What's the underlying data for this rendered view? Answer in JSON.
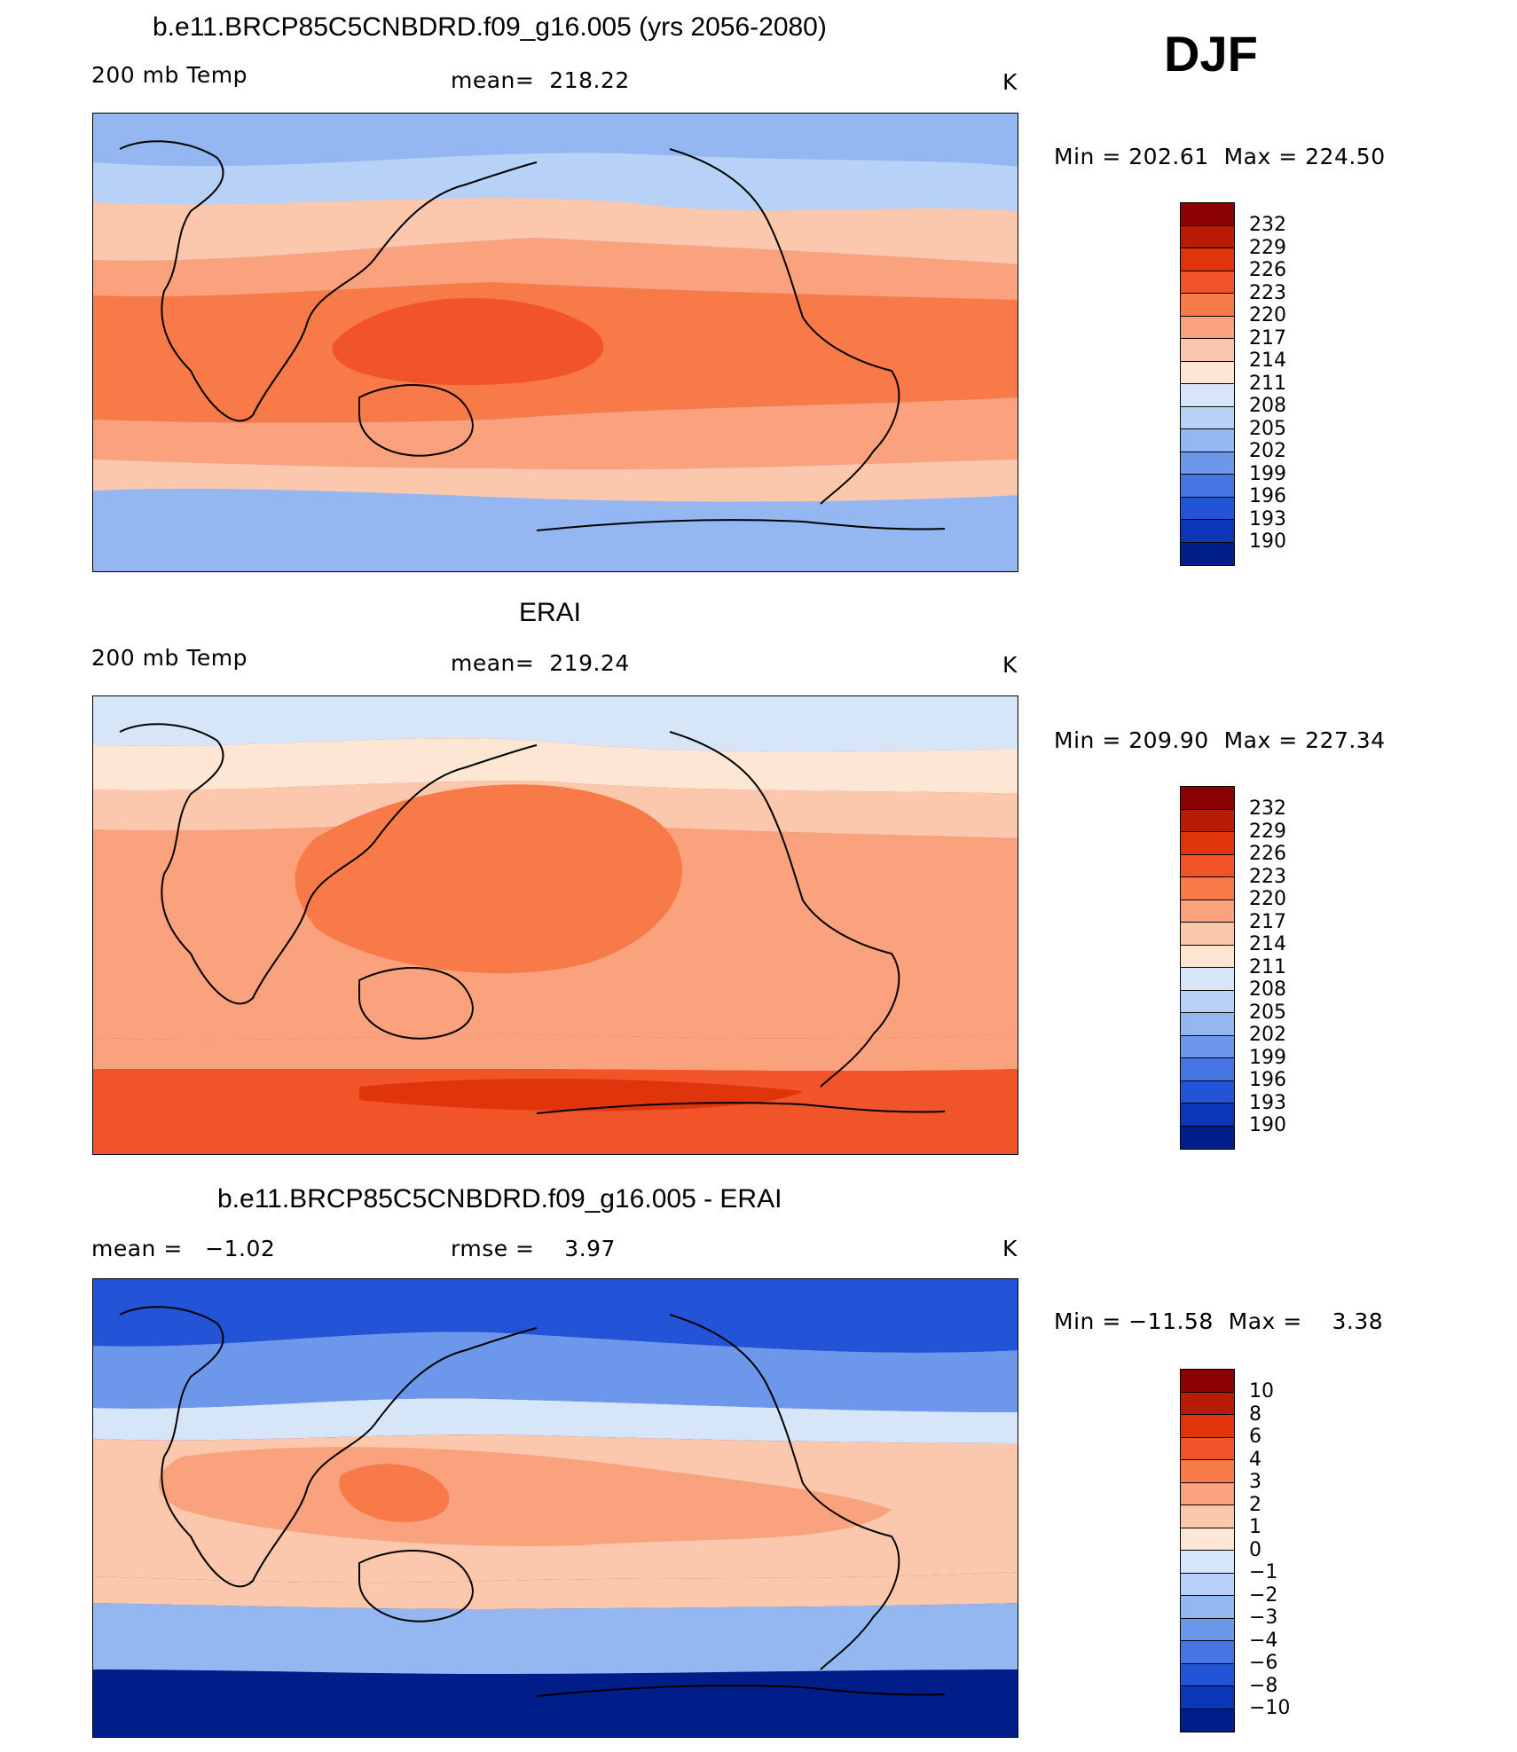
{
  "header": {
    "season": "DJF"
  },
  "panels": [
    {
      "id": "model",
      "title": "b.e11.BRCP85C5CNBDRD.f09_g16.005 (yrs 2056-2080)",
      "left_label": "200 mb Temp",
      "center_label": "mean=",
      "center_value": "218.22",
      "units": "K",
      "min_label": "Min",
      "min_value": "202.61",
      "max_label": "Max",
      "max_value": "224.50",
      "colorbar": {
        "levels": [
          "232",
          "229",
          "226",
          "223",
          "220",
          "217",
          "214",
          "211",
          "208",
          "205",
          "202",
          "199",
          "196",
          "193",
          "190"
        ],
        "colors": [
          "#8b0000",
          "#b81c05",
          "#e0350a",
          "#f2542a",
          "#f77a48",
          "#f9a27d",
          "#fcc8ad",
          "#fde6d4",
          "#d6e6f8",
          "#b8d1f6",
          "#94b7f2",
          "#6d97eb",
          "#4676e3",
          "#2354d7",
          "#0b36b8",
          "#001e8a"
        ]
      },
      "field_colors": {
        "polar_n": "#94b7f2",
        "subpolar_n": "#b8d1f6",
        "midlat_n": "#fcc8ad",
        "subtrop_n": "#f9a27d",
        "tropics": "#f77a48",
        "warm_pool": "#f2542a",
        "subtrop_s": "#f9a27d",
        "midlat_s": "#fcc8ad",
        "polar_s": "#fcc8ad"
      }
    },
    {
      "id": "obs",
      "title": "ERAI",
      "left_label": "200 mb Temp",
      "center_label": "mean=",
      "center_value": "219.24",
      "units": "K",
      "min_label": "Min",
      "min_value": "209.90",
      "max_label": "Max",
      "max_value": "227.34",
      "colorbar": {
        "levels": [
          "232",
          "229",
          "226",
          "223",
          "220",
          "217",
          "214",
          "211",
          "208",
          "205",
          "202",
          "199",
          "196",
          "193",
          "190"
        ],
        "colors": [
          "#8b0000",
          "#b81c05",
          "#e0350a",
          "#f2542a",
          "#f77a48",
          "#f9a27d",
          "#fcc8ad",
          "#fde6d4",
          "#d6e6f8",
          "#b8d1f6",
          "#94b7f2",
          "#6d97eb",
          "#4676e3",
          "#2354d7",
          "#0b36b8",
          "#001e8a"
        ]
      },
      "field_colors": {
        "polar_n": "#d6e6f8",
        "subpolar_n": "#fde6d4",
        "midlat_n": "#fcc8ad",
        "subtrop_n": "#f9a27d",
        "tropics": "#f77a48",
        "warm_pool": "#f77a48",
        "subtrop_s": "#f9a27d",
        "midlat_s": "#f2542a",
        "polar_s": "#e0350a"
      }
    },
    {
      "id": "diff",
      "title": "b.e11.BRCP85C5CNBDRD.f09_g16.005 - ERAI",
      "left_label": "mean =",
      "left_value": "−1.02",
      "center_label": "rmse =",
      "center_value": "3.97",
      "units": "K",
      "min_label": "Min",
      "min_value": "−11.58",
      "max_label": "Max",
      "max_value": "3.38",
      "colorbar": {
        "levels": [
          "10",
          "8",
          "6",
          "4",
          "3",
          "2",
          "1",
          "0",
          "−1",
          "−2",
          "−3",
          "−4",
          "−6",
          "−8",
          "−10"
        ],
        "colors": [
          "#8b0000",
          "#b81c05",
          "#e0350a",
          "#f2542a",
          "#f77a48",
          "#f9a27d",
          "#fcc8ad",
          "#fde6d4",
          "#d6e6f8",
          "#b8d1f6",
          "#94b7f2",
          "#6d97eb",
          "#4676e3",
          "#2354d7",
          "#0b36b8",
          "#001e8a"
        ]
      },
      "field_colors": {
        "polar_n": "#2354d7",
        "subpolar_n": "#6d97eb",
        "midlat_n": "#d6e6f8",
        "subtrop_n": "#fcc8ad",
        "tropics": "#f9a27d",
        "warm_pool": "#f77a48",
        "subtrop_s": "#fcc8ad",
        "midlat_s": "#94b7f2",
        "polar_s": "#001e8a"
      }
    }
  ]
}
